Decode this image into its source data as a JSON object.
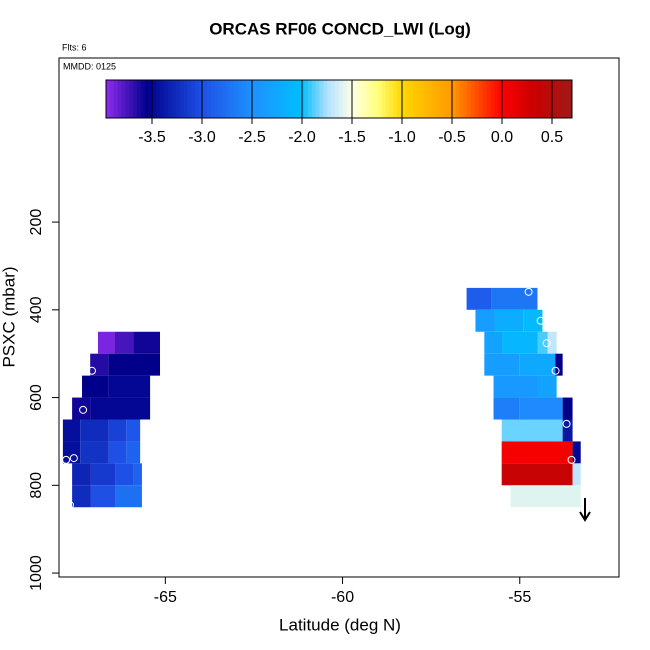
{
  "chart_data": {
    "type": "heatmap",
    "title": "ORCAS RF06 CONCD_LWI (Log)",
    "flights_label": "Flts: 6",
    "date_label": "MMDD: 0125",
    "x_label": "Latitude (deg N)",
    "y_label": "PSXC (mbar)",
    "xlim": [
      -68,
      -52.2
    ],
    "xticks": [
      -65,
      -60,
      -55
    ],
    "ylim": [
      1009,
      -174
    ],
    "yticks": [
      200,
      400,
      600,
      800,
      1000
    ],
    "colorbar_lim": [
      -3.96,
      0.7
    ],
    "colorbar_ticks": [
      -3.5,
      -3.0,
      -2.5,
      -2.0,
      -1.5,
      -1.0,
      -0.5,
      0.0,
      0.5
    ],
    "colorscale": [
      [
        -3.96,
        "#8f2cf0"
      ],
      [
        -3.55,
        "#00008b"
      ],
      [
        -3.0,
        "#1e50e6"
      ],
      [
        -2.5,
        "#1e90ff"
      ],
      [
        -2.0,
        "#00bfff"
      ],
      [
        -1.75,
        "#b0e0ff"
      ],
      [
        -1.5,
        "#ffffe8"
      ],
      [
        -1.25,
        "#ffff80"
      ],
      [
        -1.0,
        "#ffd700"
      ],
      [
        -0.5,
        "#ff9900"
      ],
      [
        0.0,
        "#ff0000"
      ],
      [
        0.3,
        "#cc0000"
      ],
      [
        0.7,
        "#a01818"
      ]
    ],
    "cells": [
      [
        -66.9,
        -66.42,
        450,
        500,
        -3.9
      ],
      [
        -66.42,
        -65.9,
        450,
        500,
        -3.75
      ],
      [
        -65.9,
        -65.15,
        450,
        500,
        -3.6
      ],
      [
        -67.12,
        -66.6,
        500,
        550,
        -3.65
      ],
      [
        -66.6,
        -65.15,
        500,
        550,
        -3.55
      ],
      [
        -67.35,
        -66.6,
        550,
        600,
        -3.55
      ],
      [
        -66.6,
        -65.43,
        550,
        600,
        -3.5
      ],
      [
        -67.63,
        -67.1,
        600,
        650,
        -3.6
      ],
      [
        -67.1,
        -65.43,
        600,
        650,
        -3.5
      ],
      [
        -67.89,
        -67.4,
        650,
        700,
        -3.45
      ],
      [
        -67.4,
        -66.6,
        650,
        700,
        -3.25
      ],
      [
        -66.6,
        -66.1,
        650,
        700,
        -3.1
      ],
      [
        -66.1,
        -65.71,
        650,
        700,
        -2.95
      ],
      [
        -67.89,
        -67.4,
        700,
        750,
        -3.45
      ],
      [
        -67.4,
        -66.6,
        700,
        750,
        -3.2
      ],
      [
        -66.6,
        -66.1,
        700,
        750,
        -3.0
      ],
      [
        -66.1,
        -65.71,
        700,
        750,
        -2.85
      ],
      [
        -67.63,
        -67.1,
        750,
        800,
        -3.3
      ],
      [
        -67.1,
        -66.4,
        750,
        800,
        -3.15
      ],
      [
        -66.4,
        -65.9,
        750,
        800,
        -3.0
      ],
      [
        -65.9,
        -65.66,
        750,
        800,
        -2.85
      ],
      [
        -67.63,
        -67.1,
        800,
        850,
        -3.25
      ],
      [
        -67.1,
        -66.4,
        800,
        850,
        -3.0
      ],
      [
        -66.4,
        -65.66,
        800,
        850,
        -2.75
      ],
      [
        -56.5,
        -55.8,
        350,
        400,
        -2.9
      ],
      [
        -55.8,
        -54.5,
        350,
        400,
        -2.7
      ],
      [
        -56.25,
        -55.7,
        400,
        450,
        -2.35
      ],
      [
        -55.7,
        -54.9,
        400,
        450,
        -2.2
      ],
      [
        -54.9,
        -54.36,
        400,
        450,
        -2.05
      ],
      [
        -56.0,
        -55.5,
        450,
        500,
        -2.3
      ],
      [
        -55.5,
        -54.5,
        450,
        500,
        -2.1
      ],
      [
        -54.5,
        -54.21,
        450,
        500,
        -1.9
      ],
      [
        -54.21,
        -53.96,
        450,
        500,
        -1.7
      ],
      [
        -56.0,
        -55.0,
        500,
        550,
        -2.35
      ],
      [
        -55.0,
        -54.0,
        500,
        550,
        -2.25
      ],
      [
        -54.0,
        -53.79,
        500,
        550,
        -3.55
      ],
      [
        -55.74,
        -54.5,
        550,
        600,
        -2.4
      ],
      [
        -54.5,
        -53.96,
        550,
        600,
        -2.3
      ],
      [
        -55.74,
        -55.0,
        600,
        650,
        -2.65
      ],
      [
        -55.0,
        -53.79,
        600,
        650,
        -2.55
      ],
      [
        -53.79,
        -53.51,
        600,
        650,
        -3.55
      ],
      [
        -55.51,
        -53.79,
        650,
        700,
        -1.85
      ],
      [
        -53.79,
        -53.51,
        650,
        700,
        -3.4
      ],
      [
        -55.51,
        -53.51,
        700,
        750,
        0.05
      ],
      [
        -53.51,
        -53.28,
        700,
        750,
        -3.5
      ],
      [
        -55.51,
        -53.51,
        750,
        800,
        0.35
      ],
      [
        -53.51,
        -53.28,
        750,
        800,
        -1.7
      ],
      [
        -55.26,
        -53.28,
        800,
        850,
        -1.6
      ]
    ],
    "track": {
      "x": [
        -67.07,
        -67.32,
        -67.8,
        -67.58,
        -67.69,
        -54.75,
        -54.41,
        -54.24,
        -53.99,
        -53.68,
        -53.54
      ],
      "y": [
        539,
        628,
        742,
        738,
        845,
        359,
        425,
        476,
        539,
        660,
        742
      ]
    }
  }
}
